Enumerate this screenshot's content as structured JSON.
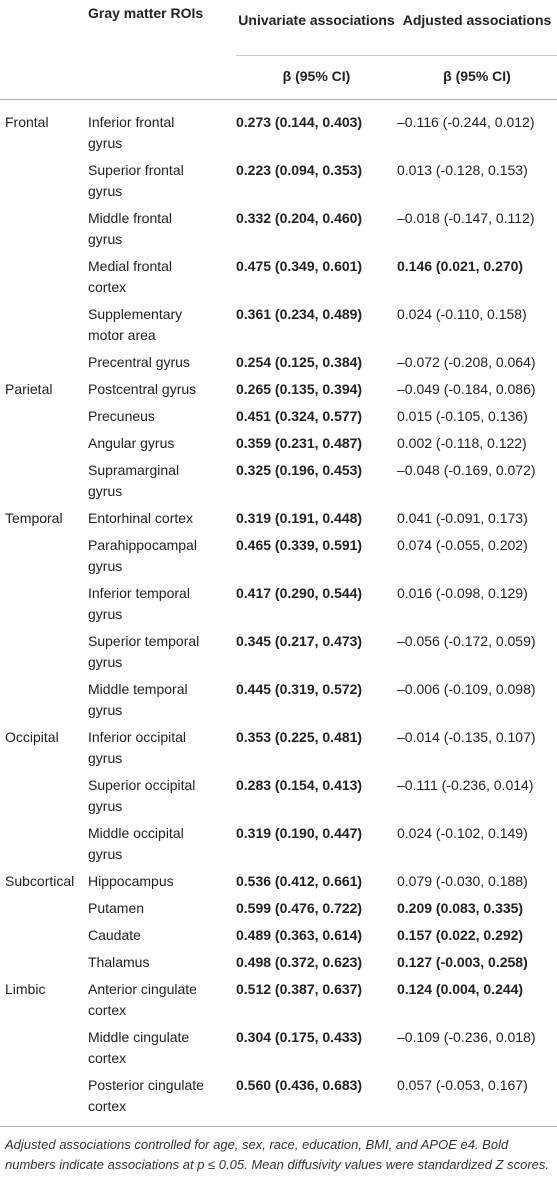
{
  "header": {
    "roi": "Gray matter ROIs",
    "univariate": "Univariate associations",
    "adjusted": "Adjusted associations",
    "univariate_sub": "β (95% CI)",
    "adjusted_sub": "β (95% CI)"
  },
  "rows": [
    {
      "group": "Frontal",
      "roi": "Inferior frontal gyrus",
      "univariate": "0.273 (0.144, 0.403)",
      "adjusted": "–0.116 (-0.244, 0.012)",
      "adjusted_bold": false
    },
    {
      "group": null,
      "roi": "Superior frontal gyrus",
      "univariate": "0.223 (0.094, 0.353)",
      "adjusted": "0.013 (-0.128, 0.153)",
      "adjusted_bold": false
    },
    {
      "group": null,
      "roi": "Middle frontal gyrus",
      "univariate": "0.332 (0.204, 0.460)",
      "adjusted": "–0.018 (-0.147, 0.112)",
      "adjusted_bold": false
    },
    {
      "group": null,
      "roi": "Medial frontal cortex",
      "univariate": "0.475 (0.349, 0.601)",
      "adjusted": "0.146 (0.021, 0.270)",
      "adjusted_bold": true
    },
    {
      "group": null,
      "roi": "Supplementary motor area",
      "univariate": "0.361 (0.234, 0.489)",
      "adjusted": "0.024 (-0.110, 0.158)",
      "adjusted_bold": false
    },
    {
      "group": null,
      "roi": "Precentral gyrus",
      "univariate": "0.254 (0.125, 0.384)",
      "adjusted": "–0.072 (-0.208, 0.064)",
      "adjusted_bold": false
    },
    {
      "group": "Parietal",
      "roi": "Postcentral gyrus",
      "univariate": "0.265 (0.135, 0.394)",
      "adjusted": "–0.049 (-0.184, 0.086)",
      "adjusted_bold": false
    },
    {
      "group": null,
      "roi": "Precuneus",
      "univariate": "0.451 (0.324, 0.577)",
      "adjusted": "0.015 (-0.105, 0.136)",
      "adjusted_bold": false
    },
    {
      "group": null,
      "roi": "Angular gyrus",
      "univariate": "0.359 (0.231, 0.487)",
      "adjusted": "0.002 (-0.118, 0.122)",
      "adjusted_bold": false
    },
    {
      "group": null,
      "roi": "Supramarginal gyrus",
      "univariate": "0.325 (0.196, 0.453)",
      "adjusted": "–0.048 (-0.169, 0.072)",
      "adjusted_bold": false
    },
    {
      "group": "Temporal",
      "roi": "Entorhinal cortex",
      "univariate": "0.319 (0.191, 0.448)",
      "adjusted": "0.041 (-0.091, 0.173)",
      "adjusted_bold": false
    },
    {
      "group": null,
      "roi": "Parahippocampal gyrus",
      "univariate": "0.465 (0.339, 0.591)",
      "adjusted": "0.074 (-0.055, 0.202)",
      "adjusted_bold": false
    },
    {
      "group": null,
      "roi": "Inferior temporal gyrus",
      "univariate": "0.417 (0.290, 0.544)",
      "adjusted": "0.016 (-0.098, 0.129)",
      "adjusted_bold": false
    },
    {
      "group": null,
      "roi": "Superior temporal gyrus",
      "univariate": "0.345 (0.217, 0.473)",
      "adjusted": "–0.056 (-0.172, 0.059)",
      "adjusted_bold": false
    },
    {
      "group": null,
      "roi": "Middle temporal gyrus",
      "univariate": "0.445 (0.319, 0.572)",
      "adjusted": "–0.006 (-0.109, 0.098)",
      "adjusted_bold": false
    },
    {
      "group": "Occipital",
      "roi": "Inferior occipital gyrus",
      "univariate": "0.353 (0.225, 0.481)",
      "adjusted": "–0.014 (-0.135, 0.107)",
      "adjusted_bold": false
    },
    {
      "group": null,
      "roi": "Superior occipital gyrus",
      "univariate": "0.283 (0.154, 0.413)",
      "adjusted": "–0.111 (-0.236, 0.014)",
      "adjusted_bold": false
    },
    {
      "group": null,
      "roi": "Middle occipital gyrus",
      "univariate": "0.319 (0.190, 0.447)",
      "adjusted": "0.024 (-0.102, 0.149)",
      "adjusted_bold": false
    },
    {
      "group": "Subcortical",
      "roi": "Hippocampus",
      "univariate": "0.536 (0.412, 0.661)",
      "adjusted": "0.079 (-0.030, 0.188)",
      "adjusted_bold": false
    },
    {
      "group": null,
      "roi": "Putamen",
      "univariate": "0.599 (0.476, 0.722)",
      "adjusted": "0.209 (0.083, 0.335)",
      "adjusted_bold": true
    },
    {
      "group": null,
      "roi": "Caudate",
      "univariate": "0.489 (0.363, 0.614)",
      "adjusted": "0.157 (0.022, 0.292)",
      "adjusted_bold": true
    },
    {
      "group": null,
      "roi": "Thalamus",
      "univariate": "0.498 (0.372, 0.623)",
      "adjusted": "0.127 (-0.003, 0.258)",
      "adjusted_bold": true
    },
    {
      "group": "Limbic",
      "roi": "Anterior cingulate cortex",
      "univariate": "0.512 (0.387, 0.637)",
      "adjusted": "0.124 (0.004, 0.244)",
      "adjusted_bold": true
    },
    {
      "group": null,
      "roi": "Middle cingulate cortex",
      "univariate": "0.304 (0.175, 0.433)",
      "adjusted": "–0.109 (-0.236, 0.018)",
      "adjusted_bold": false
    },
    {
      "group": null,
      "roi": "Posterior cingulate cortex",
      "univariate": "0.560 (0.436, 0.683)",
      "adjusted": "0.057 (-0.053, 0.167)",
      "adjusted_bold": false
    }
  ],
  "footnote": "Adjusted associations controlled for age, sex, race, education, BMI, and APOE e4. Bold numbers indicate associations at p ≤ 0.05. Mean diffusivity values were standardized Z scores."
}
